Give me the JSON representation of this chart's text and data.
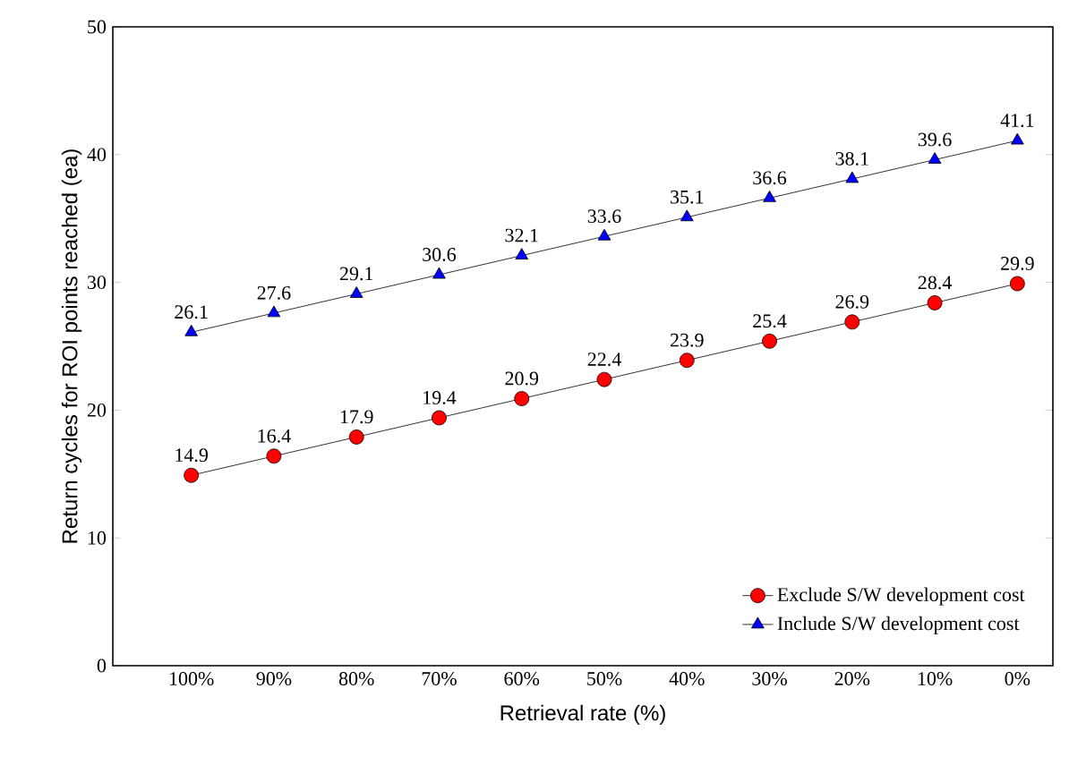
{
  "chart_data": {
    "type": "line",
    "xlabel": "Retrieval rate (%)",
    "ylabel": "Return cycles for ROI points reached (ea)",
    "categories": [
      "100%",
      "90%",
      "80%",
      "70%",
      "60%",
      "50%",
      "40%",
      "30%",
      "20%",
      "10%",
      "0%"
    ],
    "series": [
      {
        "name": "Exclude S/W development cost",
        "color": "#ff0000",
        "marker": "circle",
        "values": [
          14.9,
          16.4,
          17.9,
          19.4,
          20.9,
          22.4,
          23.9,
          25.4,
          26.9,
          28.4,
          29.9
        ]
      },
      {
        "name": "Include S/W development cost",
        "color": "#0000ff",
        "marker": "triangle",
        "values": [
          26.1,
          27.6,
          29.1,
          30.6,
          32.1,
          33.6,
          35.1,
          36.6,
          38.1,
          39.6,
          41.1
        ]
      }
    ],
    "ylim": [
      0,
      50
    ],
    "yticks": [
      0,
      10,
      20,
      30,
      40,
      50
    ],
    "data_labels": true,
    "legend": "bottom right",
    "line_style": "solid"
  }
}
